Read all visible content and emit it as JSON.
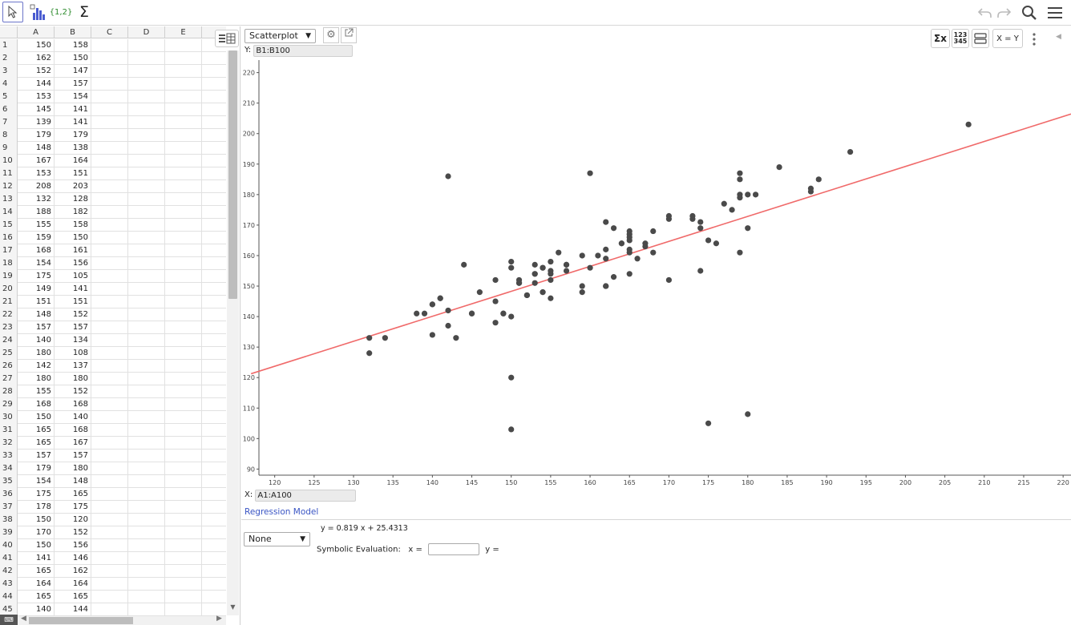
{
  "toolbar": {
    "list_label": "{1,2}",
    "sum_label": "Σ"
  },
  "spreadsheet": {
    "columns": [
      "A",
      "B",
      "C",
      "D",
      "E"
    ],
    "rows": [
      {
        "n": "1",
        "a": "150",
        "b": "158"
      },
      {
        "n": "2",
        "a": "162",
        "b": "150"
      },
      {
        "n": "3",
        "a": "152",
        "b": "147"
      },
      {
        "n": "4",
        "a": "144",
        "b": "157"
      },
      {
        "n": "5",
        "a": "153",
        "b": "154"
      },
      {
        "n": "6",
        "a": "145",
        "b": "141"
      },
      {
        "n": "7",
        "a": "139",
        "b": "141"
      },
      {
        "n": "8",
        "a": "179",
        "b": "179"
      },
      {
        "n": "9",
        "a": "148",
        "b": "138"
      },
      {
        "n": "10",
        "a": "167",
        "b": "164"
      },
      {
        "n": "11",
        "a": "153",
        "b": "151"
      },
      {
        "n": "12",
        "a": "208",
        "b": "203"
      },
      {
        "n": "13",
        "a": "132",
        "b": "128"
      },
      {
        "n": "14",
        "a": "188",
        "b": "182"
      },
      {
        "n": "15",
        "a": "155",
        "b": "158"
      },
      {
        "n": "16",
        "a": "159",
        "b": "150"
      },
      {
        "n": "17",
        "a": "168",
        "b": "161"
      },
      {
        "n": "18",
        "a": "154",
        "b": "156"
      },
      {
        "n": "19",
        "a": "175",
        "b": "105"
      },
      {
        "n": "20",
        "a": "149",
        "b": "141"
      },
      {
        "n": "21",
        "a": "151",
        "b": "151"
      },
      {
        "n": "22",
        "a": "148",
        "b": "152"
      },
      {
        "n": "23",
        "a": "157",
        "b": "157"
      },
      {
        "n": "24",
        "a": "140",
        "b": "134"
      },
      {
        "n": "25",
        "a": "180",
        "b": "108"
      },
      {
        "n": "26",
        "a": "142",
        "b": "137"
      },
      {
        "n": "27",
        "a": "180",
        "b": "180"
      },
      {
        "n": "28",
        "a": "155",
        "b": "152"
      },
      {
        "n": "29",
        "a": "168",
        "b": "168"
      },
      {
        "n": "30",
        "a": "150",
        "b": "140"
      },
      {
        "n": "31",
        "a": "165",
        "b": "168"
      },
      {
        "n": "32",
        "a": "165",
        "b": "167"
      },
      {
        "n": "33",
        "a": "157",
        "b": "157"
      },
      {
        "n": "34",
        "a": "179",
        "b": "180"
      },
      {
        "n": "35",
        "a": "154",
        "b": "148"
      },
      {
        "n": "36",
        "a": "175",
        "b": "165"
      },
      {
        "n": "37",
        "a": "178",
        "b": "175"
      },
      {
        "n": "38",
        "a": "150",
        "b": "120"
      },
      {
        "n": "39",
        "a": "170",
        "b": "152"
      },
      {
        "n": "40",
        "a": "150",
        "b": "156"
      },
      {
        "n": "41",
        "a": "141",
        "b": "146"
      },
      {
        "n": "42",
        "a": "165",
        "b": "162"
      },
      {
        "n": "43",
        "a": "164",
        "b": "164"
      },
      {
        "n": "44",
        "a": "165",
        "b": "165"
      },
      {
        "n": "45",
        "a": "140",
        "b": "144"
      }
    ]
  },
  "panel": {
    "plot_type": "Scatterplot",
    "y_label": "Y:",
    "y_range": "B1:B100",
    "x_label": "X:",
    "x_range": "A1:A100",
    "regression_title": "Regression Model",
    "model": "None",
    "equation": "y = 0.819 x + 25.4313",
    "symbolic_label": "Symbolic Evaluation:",
    "x_eq": "x =",
    "y_eq": "y =",
    "tools": {
      "sigma": "Σx",
      "numbers_top": "123",
      "numbers_bottom": "345",
      "xy": "X = Y"
    }
  },
  "colors": {
    "point": "#4a4a4a",
    "regression": "#f06a6a",
    "accent": "#3a55c4"
  },
  "chart_data": {
    "type": "scatter",
    "xlim": [
      118,
      221
    ],
    "ylim": [
      88,
      222
    ],
    "xticks": [
      120,
      125,
      130,
      135,
      140,
      145,
      150,
      155,
      160,
      165,
      170,
      175,
      180,
      185,
      190,
      195,
      200,
      205,
      210,
      215,
      220
    ],
    "yticks": [
      90,
      100,
      110,
      120,
      130,
      140,
      150,
      160,
      170,
      180,
      190,
      200,
      210,
      220
    ],
    "regression": {
      "slope": 0.819,
      "intercept": 25.4313
    },
    "points": [
      [
        150,
        158
      ],
      [
        162,
        150
      ],
      [
        152,
        147
      ],
      [
        144,
        157
      ],
      [
        153,
        154
      ],
      [
        145,
        141
      ],
      [
        139,
        141
      ],
      [
        179,
        179
      ],
      [
        148,
        138
      ],
      [
        167,
        164
      ],
      [
        153,
        151
      ],
      [
        208,
        203
      ],
      [
        132,
        128
      ],
      [
        188,
        182
      ],
      [
        155,
        158
      ],
      [
        159,
        150
      ],
      [
        168,
        161
      ],
      [
        154,
        156
      ],
      [
        175,
        105
      ],
      [
        149,
        141
      ],
      [
        151,
        151
      ],
      [
        148,
        152
      ],
      [
        157,
        157
      ],
      [
        140,
        134
      ],
      [
        180,
        108
      ],
      [
        142,
        137
      ],
      [
        180,
        180
      ],
      [
        155,
        152
      ],
      [
        168,
        168
      ],
      [
        150,
        140
      ],
      [
        165,
        168
      ],
      [
        165,
        167
      ],
      [
        157,
        157
      ],
      [
        179,
        180
      ],
      [
        154,
        148
      ],
      [
        175,
        165
      ],
      [
        178,
        175
      ],
      [
        150,
        120
      ],
      [
        170,
        152
      ],
      [
        150,
        156
      ],
      [
        141,
        146
      ],
      [
        165,
        162
      ],
      [
        164,
        164
      ],
      [
        165,
        165
      ],
      [
        140,
        144
      ],
      [
        142,
        186
      ],
      [
        160,
        187
      ],
      [
        150,
        103
      ],
      [
        184,
        189
      ],
      [
        193,
        194
      ],
      [
        189,
        185
      ],
      [
        188,
        181
      ],
      [
        179,
        187
      ],
      [
        179,
        185
      ],
      [
        181,
        180
      ],
      [
        180,
        169
      ],
      [
        179,
        161
      ],
      [
        174,
        171
      ],
      [
        173,
        173
      ],
      [
        173,
        172
      ],
      [
        170,
        173
      ],
      [
        170,
        172
      ],
      [
        174,
        169
      ],
      [
        174,
        155
      ],
      [
        177,
        177
      ],
      [
        176,
        164
      ],
      [
        162,
        171
      ],
      [
        163,
        169
      ],
      [
        165,
        166
      ],
      [
        164,
        164
      ],
      [
        167,
        163
      ],
      [
        166,
        159
      ],
      [
        162,
        159
      ],
      [
        162,
        162
      ],
      [
        161,
        160
      ],
      [
        159,
        160
      ],
      [
        160,
        156
      ],
      [
        159,
        148
      ],
      [
        163,
        153
      ],
      [
        162,
        150
      ],
      [
        165,
        154
      ],
      [
        165,
        161
      ],
      [
        157,
        155
      ],
      [
        156,
        161
      ],
      [
        155,
        155
      ],
      [
        155,
        154
      ],
      [
        153,
        157
      ],
      [
        154,
        156
      ],
      [
        153,
        154
      ],
      [
        151,
        152
      ],
      [
        151,
        151
      ],
      [
        149,
        141
      ],
      [
        146,
        148
      ],
      [
        148,
        145
      ],
      [
        145,
        141
      ],
      [
        140,
        144
      ],
      [
        141,
        146
      ],
      [
        142,
        142
      ],
      [
        143,
        133
      ],
      [
        134,
        133
      ],
      [
        132,
        133
      ],
      [
        138,
        141
      ],
      [
        154,
        148
      ],
      [
        155,
        146
      ],
      [
        152,
        147
      ]
    ]
  }
}
